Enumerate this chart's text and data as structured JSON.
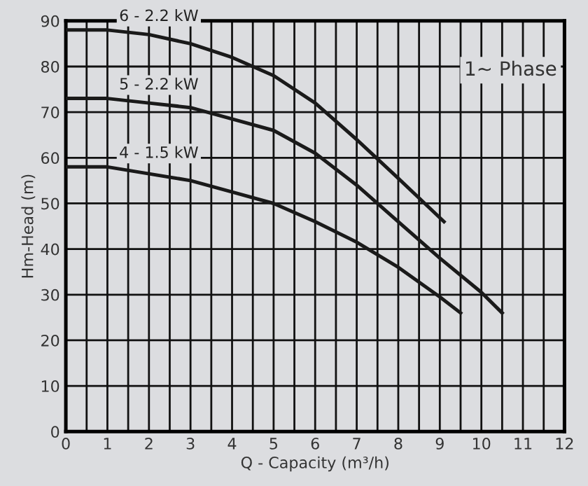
{
  "chart_data": {
    "type": "line",
    "xlabel": "Q - Capacity (m³/h)",
    "ylabel": "Hm-Head (m)",
    "annotations": [
      "1~ Phase"
    ],
    "series": [
      {
        "name": "6 - 2.2 kW",
        "color": "#1a1a1a",
        "x": [
          0,
          1,
          2,
          3,
          4,
          5,
          6,
          7,
          8,
          9.1
        ],
        "values": [
          88,
          88,
          87,
          85,
          82,
          78,
          72,
          64,
          55.5,
          46
        ]
      },
      {
        "name": "5 - 2.2 kW",
        "color": "#1a1a1a",
        "x": [
          0,
          1,
          2,
          3,
          4,
          5,
          6,
          7,
          8,
          9,
          10,
          10.5
        ],
        "values": [
          73,
          73,
          72,
          71,
          68.5,
          66,
          61,
          54,
          46,
          38,
          30.5,
          26
        ]
      },
      {
        "name": "4 - 1.5 kW",
        "color": "#1a1a1a",
        "x": [
          0,
          1,
          2,
          3,
          4,
          5,
          6,
          7,
          8,
          9,
          9.5
        ],
        "values": [
          58,
          58,
          56.5,
          55,
          52.5,
          50,
          46,
          41.5,
          36,
          29.5,
          26
        ]
      }
    ],
    "xlim": [
      0,
      12
    ],
    "ylim": [
      0,
      90
    ],
    "xticks": [
      0,
      {
        "value": 0.5,
        "label": null
      },
      1,
      {
        "value": 1.5,
        "label": null
      },
      2,
      {
        "value": 2.5,
        "label": null
      },
      3,
      {
        "value": 3.5,
        "label": null
      },
      4,
      {
        "value": 4.5,
        "label": null
      },
      5,
      {
        "value": 5.5,
        "label": null
      },
      6,
      {
        "value": 6.5,
        "label": null
      },
      7,
      {
        "value": 7.5,
        "label": null
      },
      8,
      {
        "value": 8.5,
        "label": null
      },
      9,
      {
        "value": 9.5,
        "label": null
      },
      10,
      {
        "value": 10.5,
        "label": null
      },
      11,
      {
        "value": 11.5,
        "label": null
      },
      12
    ],
    "yticks": [
      0,
      10,
      20,
      30,
      40,
      50,
      60,
      70,
      80,
      90
    ],
    "grid": true,
    "marker": "none",
    "line_style": "solid",
    "legend": false
  }
}
